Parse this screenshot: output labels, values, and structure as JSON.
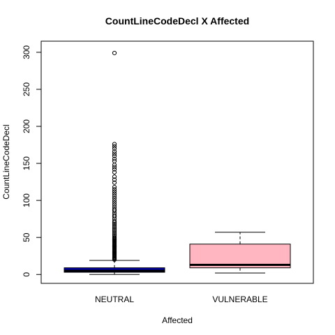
{
  "chart_data": {
    "type": "boxplot",
    "title": "CountLineCodeDecl X Affected",
    "xlabel": "Affected",
    "ylabel": "CountLineCodeDecl",
    "ylim": [
      -12,
      315
    ],
    "yticks": [
      0,
      50,
      100,
      150,
      200,
      250,
      300
    ],
    "categories": [
      "NEUTRAL",
      "VULNERABLE"
    ],
    "grid": false,
    "legend": "none",
    "boxes": [
      {
        "category": "NEUTRAL",
        "fill": "#0000a8",
        "min": 0,
        "q1": 3,
        "median": 5,
        "q3": 9,
        "whisker_high": 19,
        "outliers": [
          20,
          21,
          22,
          23,
          24,
          25,
          26,
          27,
          28,
          29,
          30,
          31,
          32,
          33,
          34,
          35,
          36,
          37,
          38,
          39,
          40,
          41,
          42,
          43,
          44,
          45,
          46,
          47,
          48,
          49,
          50,
          52,
          54,
          56,
          58,
          60,
          62,
          64,
          66,
          68,
          70,
          72,
          75,
          78,
          80,
          83,
          86,
          88,
          91,
          94,
          97,
          100,
          103,
          106,
          109,
          112,
          115,
          118,
          124,
          128,
          132,
          138,
          142,
          145,
          148,
          153,
          156,
          160,
          163,
          166,
          170,
          173,
          176,
          299
        ]
      },
      {
        "category": "VULNERABLE",
        "fill": "#ffb6c1",
        "min": 2,
        "q1": 9,
        "median": 13,
        "q3": 41,
        "whisker_high": 57,
        "outliers": []
      }
    ]
  }
}
